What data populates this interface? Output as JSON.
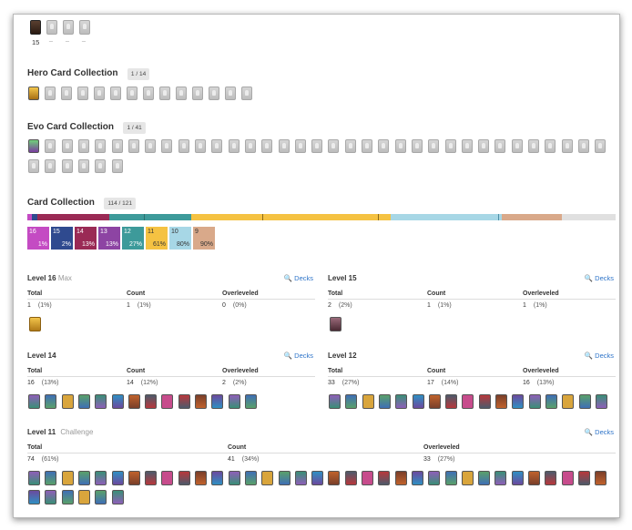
{
  "top": {
    "count": "15",
    "dashes": [
      "_",
      "_",
      "_"
    ]
  },
  "hero": {
    "title": "Hero Card Collection",
    "badge": "1 / 14"
  },
  "evo": {
    "title": "Evo Card Collection",
    "badge": "1 / 41"
  },
  "cards": {
    "title": "Card Collection",
    "badge": "114 / 121"
  },
  "levels_summary": [
    {
      "level": "16",
      "pct": "1%",
      "color": "#c44bc3"
    },
    {
      "level": "15",
      "pct": "2%",
      "color": "#2f4a8f"
    },
    {
      "level": "14",
      "pct": "13%",
      "color": "#9a2a55"
    },
    {
      "level": "13",
      "pct": "13%",
      "color": "#8d44a3"
    },
    {
      "level": "12",
      "pct": "27%",
      "color": "#3d9a9a"
    },
    {
      "level": "11",
      "pct": "61%",
      "color": "#f5c242"
    },
    {
      "level": "10",
      "pct": "80%",
      "color": "#a7d7e6"
    },
    {
      "level": "9",
      "pct": "90%",
      "color": "#d9a98a"
    }
  ],
  "progress_colors": {
    "remaining": "#e0e0e0"
  },
  "col_headers": {
    "total": "Total",
    "count": "Count",
    "over": "Overleveled"
  },
  "decks_label": "Decks",
  "sections": {
    "l16": {
      "title": "Level 16",
      "sub": "Max",
      "total": "1",
      "total_pct": "(1%)",
      "count": "1",
      "count_pct": "(1%)",
      "over": "0",
      "over_pct": "(0%)"
    },
    "l15": {
      "title": "Level 15",
      "sub": "",
      "total": "2",
      "total_pct": "(2%)",
      "count": "1",
      "count_pct": "(1%)",
      "over": "1",
      "over_pct": "(1%)"
    },
    "l14": {
      "title": "Level 14",
      "sub": "",
      "total": "16",
      "total_pct": "(13%)",
      "count": "14",
      "count_pct": "(12%)",
      "over": "2",
      "over_pct": "(2%)"
    },
    "l12": {
      "title": "Level 12",
      "sub": "",
      "total": "33",
      "total_pct": "(27%)",
      "count": "17",
      "count_pct": "(14%)",
      "over": "16",
      "over_pct": "(13%)"
    },
    "l11": {
      "title": "Level 11",
      "sub": "Challenge",
      "total": "74",
      "total_pct": "(61%)",
      "count": "41",
      "count_pct": "(34%)",
      "over": "33",
      "over_pct": "(27%)"
    }
  },
  "card_palette": [
    "#3f6fb5",
    "#c0622c",
    "#6b4a9e",
    "#3a8f77",
    "#b8383c",
    "#d9a53c",
    "#4d5a6b",
    "#8e5fb8",
    "#2f8fc2",
    "#7a3f2a",
    "#5aa06a",
    "#c74c8c"
  ]
}
